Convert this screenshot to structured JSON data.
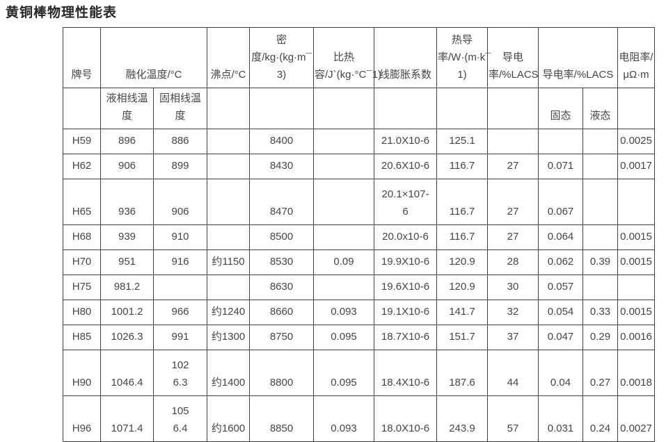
{
  "page_title": "黄铜棒物理性能表",
  "colors": {
    "background": "#ffffff",
    "title_text": "#262626",
    "table_text": "#45454b",
    "table_border": "#3f3f3f"
  },
  "table": {
    "header_row1": [
      {
        "text": "牌号",
        "span": 1
      },
      {
        "text": "融化温度/°C",
        "span": 2
      },
      {
        "text": "沸点/°C",
        "span": 1
      },
      {
        "text": "密\n度/kg·(kg·m¯\n3)",
        "span": 1
      },
      {
        "text": "比热\n容/J`(kg·°C¯1)",
        "span": 1
      },
      {
        "text": "线膨胀系数",
        "span": 1
      },
      {
        "text": "热导\n率/W·(m·k¯\n1)",
        "span": 1
      },
      {
        "text": "导电\n率/%LACS",
        "span": 1
      },
      {
        "text": "导电率/%LACS",
        "span": 2
      },
      {
        "text": "电阻率/\nμΩ·m",
        "span": 1
      }
    ],
    "header_row2": [
      "",
      "液相线温度",
      "固相线温度",
      "",
      "",
      "",
      "",
      "",
      "",
      "固态",
      "液态",
      ""
    ],
    "rows": [
      [
        "H59",
        "896",
        "886",
        "",
        "8400",
        "",
        "21.0X10-6",
        "125.1",
        "",
        "",
        "",
        "0.0025"
      ],
      [
        "H62",
        "906",
        "899",
        "",
        "8430",
        "",
        "20.6X10-6",
        "116.7",
        "27",
        "0.071",
        "",
        "0.0017"
      ],
      [
        "H65",
        "936",
        "906",
        "",
        "8470",
        "",
        "20.1×107-\n6",
        "116.7",
        "27",
        "0.067",
        "",
        ""
      ],
      [
        "H68",
        "939",
        "910",
        "",
        "8500",
        "",
        "20.0x10-6",
        "116.7",
        "27",
        "0.064",
        "",
        "0.0015"
      ],
      [
        "H70",
        "951",
        "916",
        "约1150",
        "8530",
        "0.09",
        "19.9X10-6",
        "120.9",
        "28",
        "0.062",
        "0.39",
        "0.0015"
      ],
      [
        "H75",
        "981.2",
        "",
        "",
        "8630",
        "",
        "19.6X10-6",
        "120.9",
        "30",
        "0.057",
        "",
        ""
      ],
      [
        "H80",
        "1001.2",
        "966",
        "约1240",
        "8660",
        "0.093",
        "19.1X10-6",
        "141.7",
        "32",
        "0.054",
        "0.33",
        "0.0015"
      ],
      [
        "H85",
        "1026.3",
        "991",
        "约1300",
        "8750",
        "0.095",
        "18.7X10-6",
        "151.7",
        "37",
        "0.047",
        "0.29",
        "0.0016"
      ],
      [
        "H90",
        "1046.4",
        "102\n6.3",
        "约1400",
        "8800",
        "0.095",
        "18.4X10-6",
        "187.6",
        "44",
        "0.04",
        "0.27",
        "0.0018"
      ],
      [
        "H96",
        "1071.4",
        "105\n6.4",
        "约1600",
        "8850",
        "0.093",
        "18.0X10-6",
        "243.9",
        "57",
        "0.031",
        "0.24",
        "0.0027"
      ]
    ]
  }
}
